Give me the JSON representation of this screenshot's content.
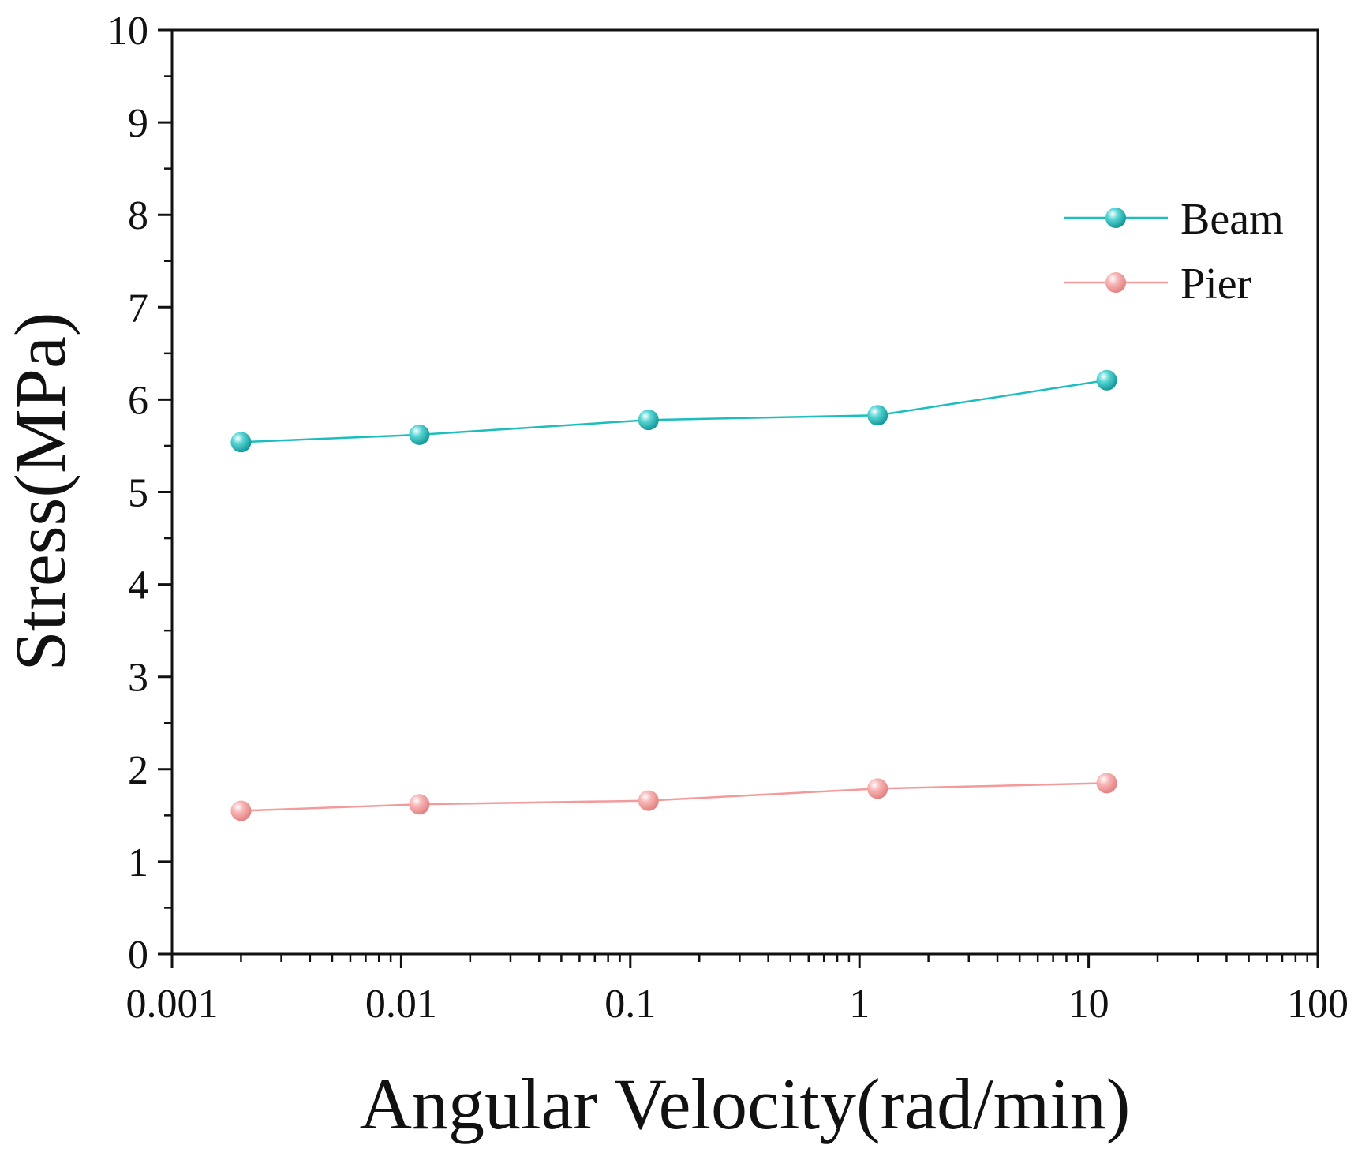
{
  "chart_data": {
    "type": "line",
    "title": "",
    "xlabel": "Angular Velocity(rad/min)",
    "ylabel": "Stress(MPa)",
    "xscale": "log",
    "xlim": [
      0.001,
      100
    ],
    "ylim": [
      0,
      10
    ],
    "x_ticks": [
      {
        "value": 0.001,
        "label": "0.001"
      },
      {
        "value": 0.01,
        "label": "0.01"
      },
      {
        "value": 0.1,
        "label": "0.1"
      },
      {
        "value": 1,
        "label": "1"
      },
      {
        "value": 10,
        "label": "10"
      },
      {
        "value": 100,
        "label": "100"
      }
    ],
    "y_ticks": [
      {
        "value": 0,
        "label": "0"
      },
      {
        "value": 1,
        "label": "1"
      },
      {
        "value": 2,
        "label": "2"
      },
      {
        "value": 3,
        "label": "3"
      },
      {
        "value": 4,
        "label": "4"
      },
      {
        "value": 5,
        "label": "5"
      },
      {
        "value": 6,
        "label": "6"
      },
      {
        "value": 7,
        "label": "7"
      },
      {
        "value": 8,
        "label": "8"
      },
      {
        "value": 9,
        "label": "9"
      },
      {
        "value": 10,
        "label": "10"
      }
    ],
    "grid": false,
    "legend_position": "top-right",
    "x": [
      0.002,
      0.012,
      0.12,
      1.2,
      12
    ],
    "series": [
      {
        "name": "Beam",
        "color": "#1bbdbd",
        "values": [
          5.54,
          5.62,
          5.78,
          5.83,
          6.21
        ]
      },
      {
        "name": "Pier",
        "color": "#f59a9a",
        "values": [
          1.55,
          1.62,
          1.66,
          1.79,
          1.85
        ]
      }
    ]
  }
}
